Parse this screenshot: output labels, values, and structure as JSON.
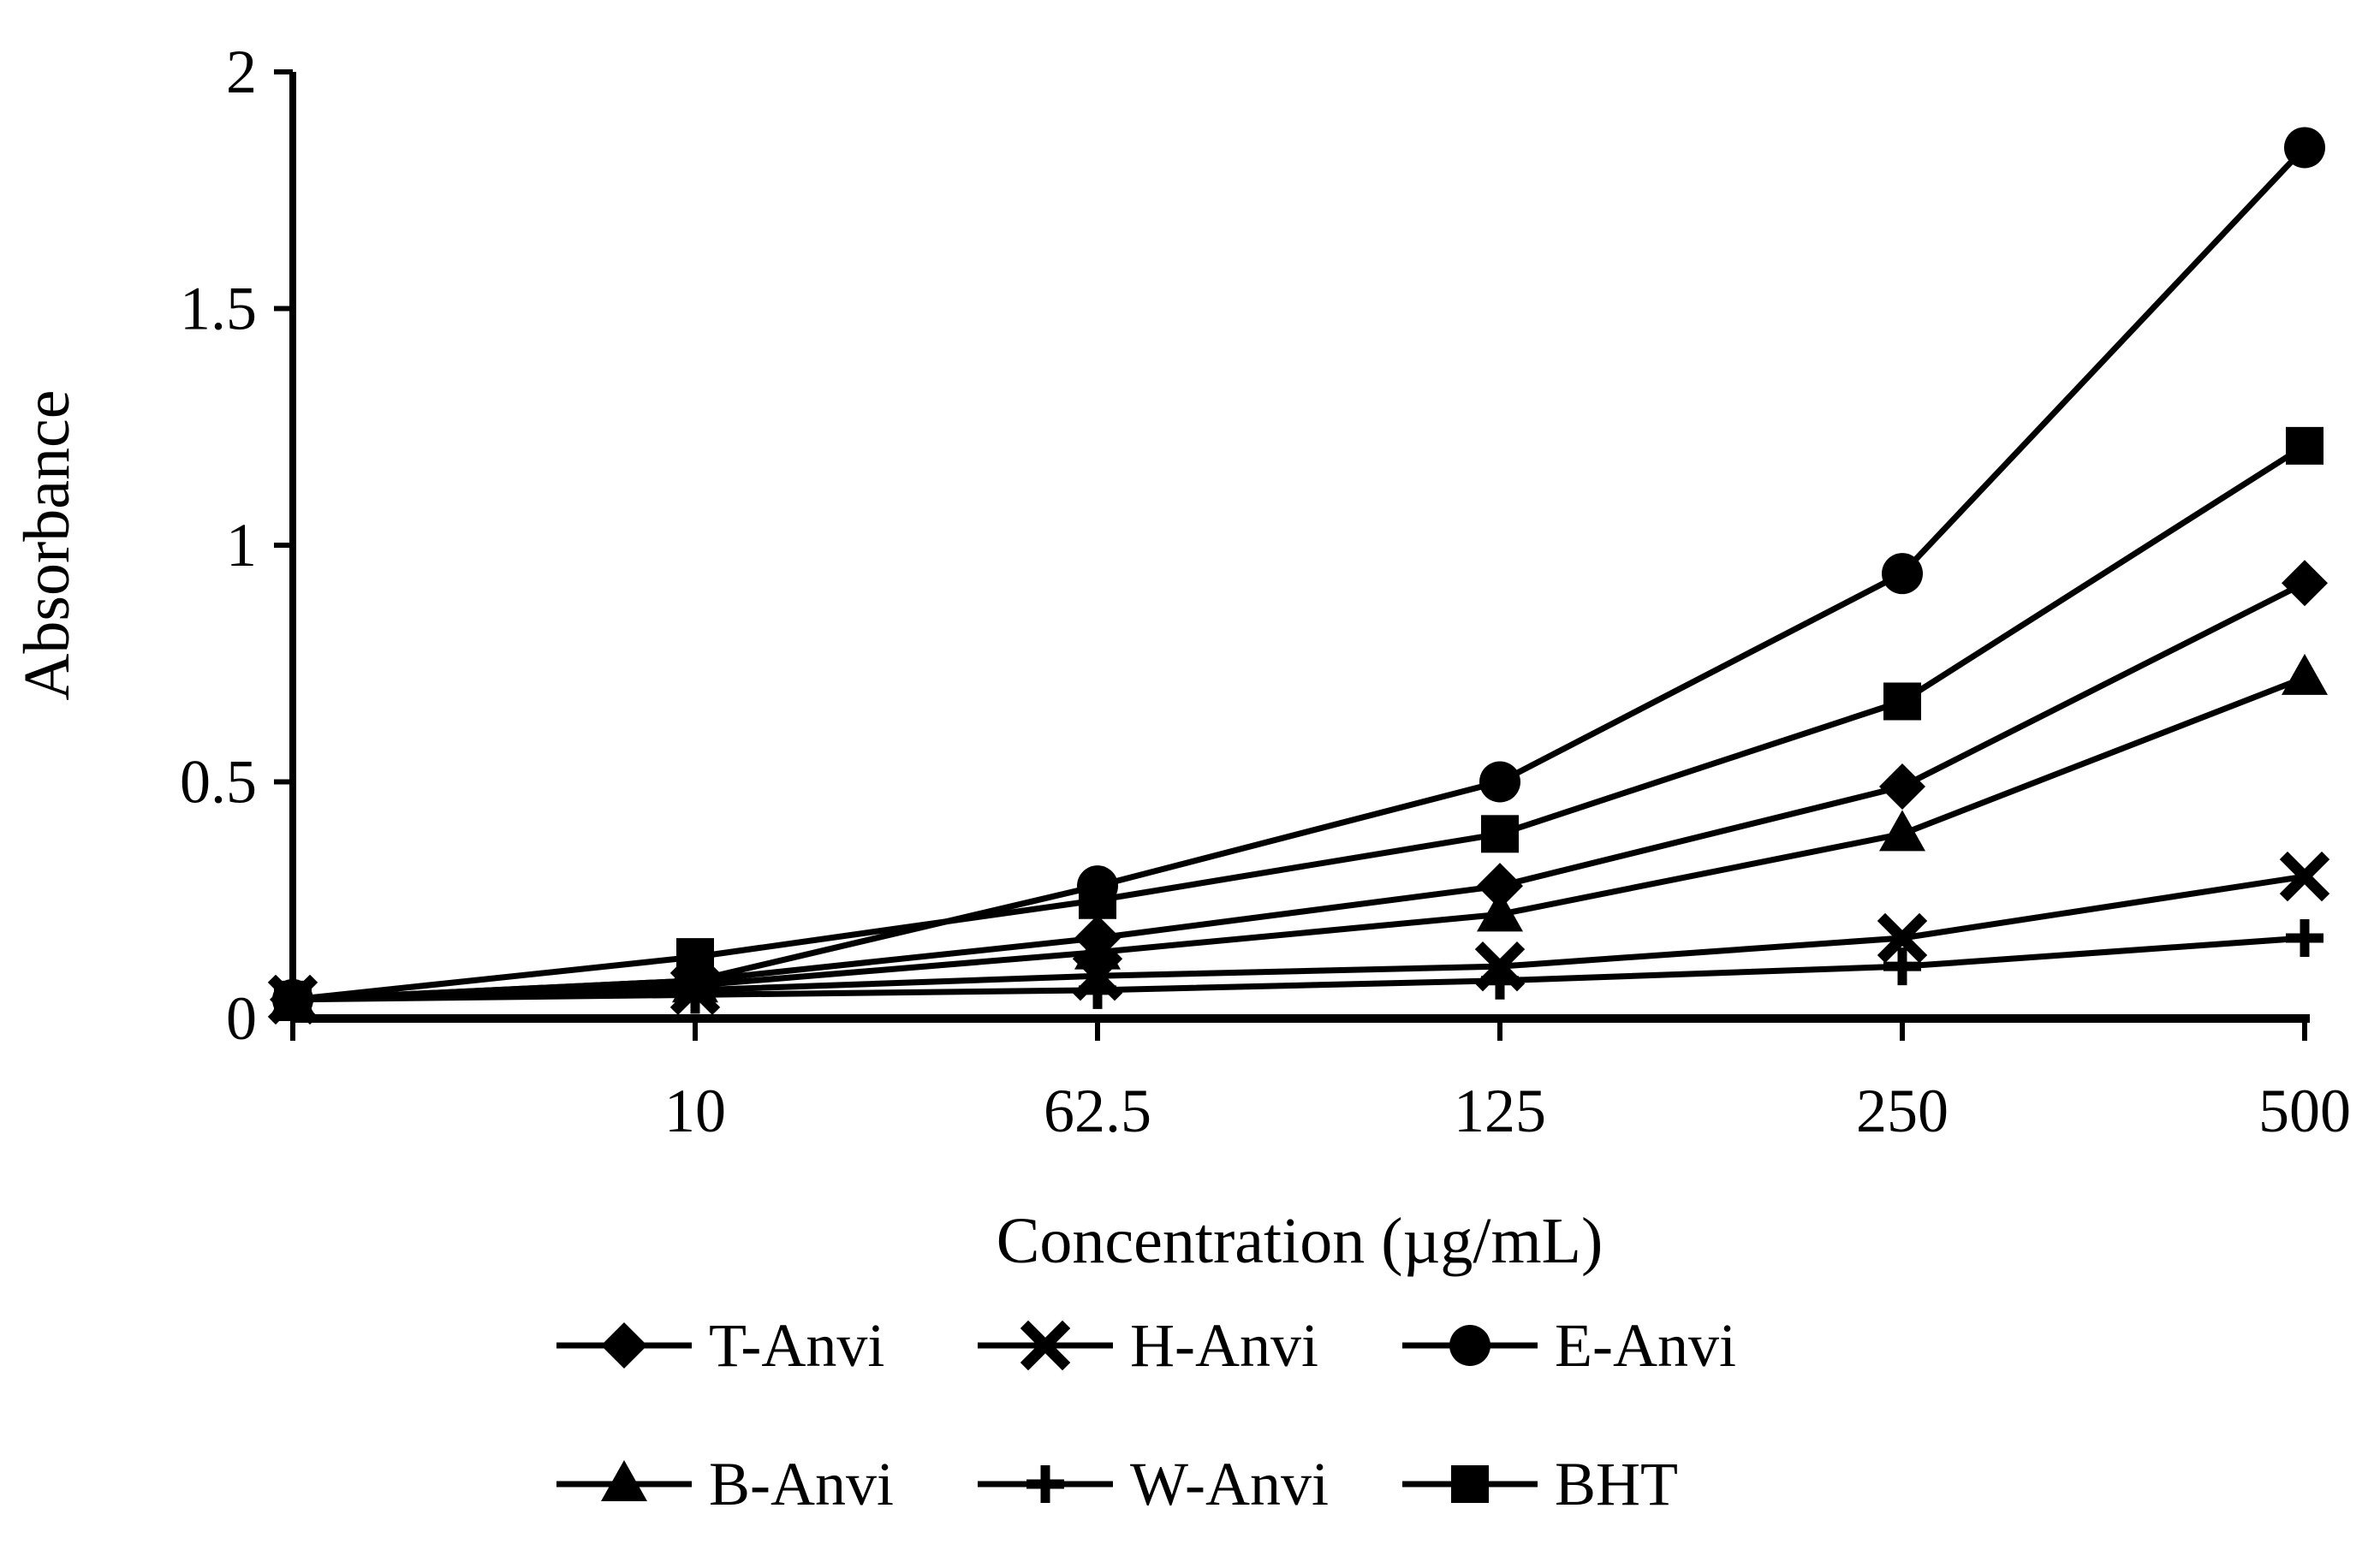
{
  "chart_data": {
    "type": "line",
    "title": "",
    "xlabel": "Concentration (µg/mL)",
    "ylabel": "Absorbance",
    "categories": [
      "",
      "10",
      "62.5",
      "125",
      "250",
      "500"
    ],
    "ylim": [
      0,
      2
    ],
    "yticks": [
      "0",
      "0.5",
      "1",
      "1.5",
      "2"
    ],
    "grid": false,
    "legend_position": "bottom",
    "color": "#000000",
    "series": [
      {
        "name": "T-Anvi",
        "marker": "diamond",
        "values": [
          0.04,
          0.08,
          0.17,
          0.28,
          0.49,
          0.92
        ]
      },
      {
        "name": "H-Anvi",
        "marker": "x",
        "values": [
          0.04,
          0.06,
          0.09,
          0.11,
          0.17,
          0.3
        ]
      },
      {
        "name": "E-Anvi",
        "marker": "circle",
        "values": [
          0.04,
          0.08,
          0.28,
          0.5,
          0.94,
          1.84
        ]
      },
      {
        "name": "B-Anvi",
        "marker": "triangle",
        "values": [
          0.04,
          0.07,
          0.14,
          0.22,
          0.39,
          0.72
        ]
      },
      {
        "name": "W-Anvi",
        "marker": "plus",
        "values": [
          0.04,
          0.05,
          0.06,
          0.08,
          0.11,
          0.17
        ]
      },
      {
        "name": "BHT",
        "marker": "square",
        "values": [
          0.04,
          0.13,
          0.25,
          0.39,
          0.67,
          1.21
        ]
      }
    ]
  }
}
